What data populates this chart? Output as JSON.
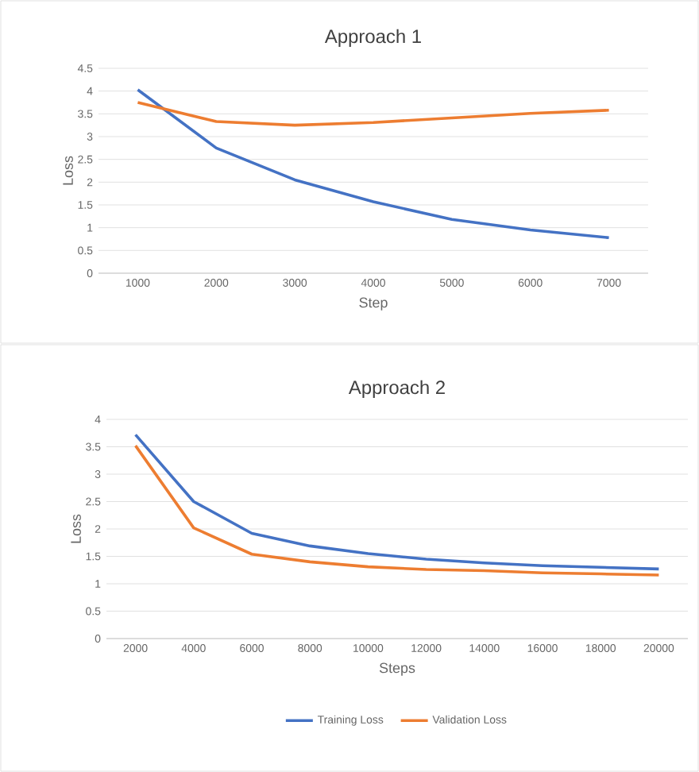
{
  "chart_data": [
    {
      "type": "line",
      "title": "Approach 1",
      "xlabel": "Step",
      "ylabel": "Loss",
      "categories": [
        "1000",
        "2000",
        "3000",
        "4000",
        "5000",
        "6000",
        "7000"
      ],
      "ylim": [
        0,
        4.5
      ],
      "yticks": [
        0,
        0.5,
        1,
        1.5,
        2,
        2.5,
        3,
        3.5,
        4,
        4.5
      ],
      "grid": "y",
      "legend": false,
      "marker": "none",
      "series": [
        {
          "color": "#4472c4",
          "values": [
            4.03,
            2.75,
            2.05,
            1.57,
            1.18,
            0.95,
            0.78
          ]
        },
        {
          "color": "#ed7d31",
          "values": [
            3.75,
            3.33,
            3.25,
            3.31,
            3.41,
            3.51,
            3.58
          ]
        }
      ]
    },
    {
      "type": "line",
      "title": "Approach 2",
      "xlabel": "Steps",
      "ylabel": "Loss",
      "categories": [
        "2000",
        "4000",
        "6000",
        "8000",
        "10000",
        "12000",
        "14000",
        "16000",
        "18000",
        "20000"
      ],
      "ylim": [
        0,
        4
      ],
      "yticks": [
        0,
        0.5,
        1,
        1.5,
        2,
        2.5,
        3,
        3.5,
        4
      ],
      "grid": "y",
      "legend": "bottom",
      "marker": "none",
      "series": [
        {
          "name": "Training Loss",
          "color": "#4472c4",
          "values": [
            3.72,
            2.5,
            1.92,
            1.69,
            1.55,
            1.45,
            1.38,
            1.33,
            1.3,
            1.27
          ]
        },
        {
          "name": "Validation Loss",
          "color": "#ed7d31",
          "values": [
            3.52,
            2.02,
            1.54,
            1.4,
            1.31,
            1.26,
            1.24,
            1.2,
            1.18,
            1.16
          ]
        }
      ]
    }
  ]
}
